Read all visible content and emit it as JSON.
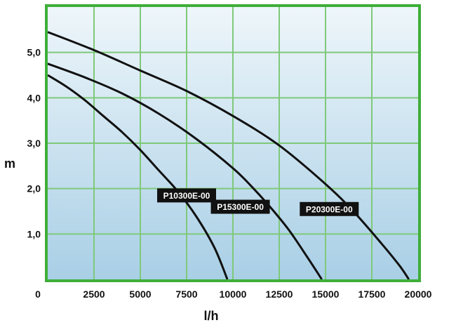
{
  "chart_data": {
    "type": "line",
    "title": "",
    "xlabel": "l/h",
    "ylabel": "m",
    "xlim": [
      0,
      20000
    ],
    "ylim": [
      0,
      6.0
    ],
    "grid": true,
    "x_ticks": [
      "0",
      "2500",
      "5000",
      "7500",
      "10000",
      "12500",
      "15000",
      "17500",
      "20000"
    ],
    "y_ticks": [
      "1,0",
      "2,0",
      "3,0",
      "4,0",
      "5,0"
    ],
    "colors": {
      "frame": "#3fae3a",
      "grid": "#7fc97a",
      "bg_top": "#eef6fa",
      "bg_bottom": "#a9cfe6",
      "curve": "#111111",
      "label_bg": "#111111"
    },
    "series": [
      {
        "name": "P10300E-00",
        "label_at": [
          7500,
          1.85
        ],
        "x": [
          0,
          1000,
          2000,
          3000,
          4000,
          5000,
          6000,
          7000,
          8000,
          9000,
          9700
        ],
        "y": [
          4.5,
          4.25,
          3.95,
          3.6,
          3.25,
          2.85,
          2.4,
          1.95,
          1.4,
          0.7,
          0.0
        ]
      },
      {
        "name": "P15300E-00",
        "label_at": [
          10400,
          1.6
        ],
        "x": [
          0,
          2000,
          4000,
          6000,
          8000,
          10000,
          11000,
          12000,
          13000,
          14000,
          14800
        ],
        "y": [
          4.75,
          4.45,
          4.1,
          3.65,
          3.1,
          2.45,
          2.05,
          1.6,
          1.1,
          0.5,
          0.0
        ]
      },
      {
        "name": "P20300E-00",
        "label_at": [
          15200,
          1.55
        ],
        "x": [
          0,
          2500,
          5000,
          7500,
          10000,
          12500,
          15000,
          16500,
          18000,
          19000,
          19500
        ],
        "y": [
          5.45,
          5.05,
          4.6,
          4.15,
          3.6,
          2.95,
          2.1,
          1.5,
          0.8,
          0.3,
          0.0
        ]
      }
    ]
  }
}
